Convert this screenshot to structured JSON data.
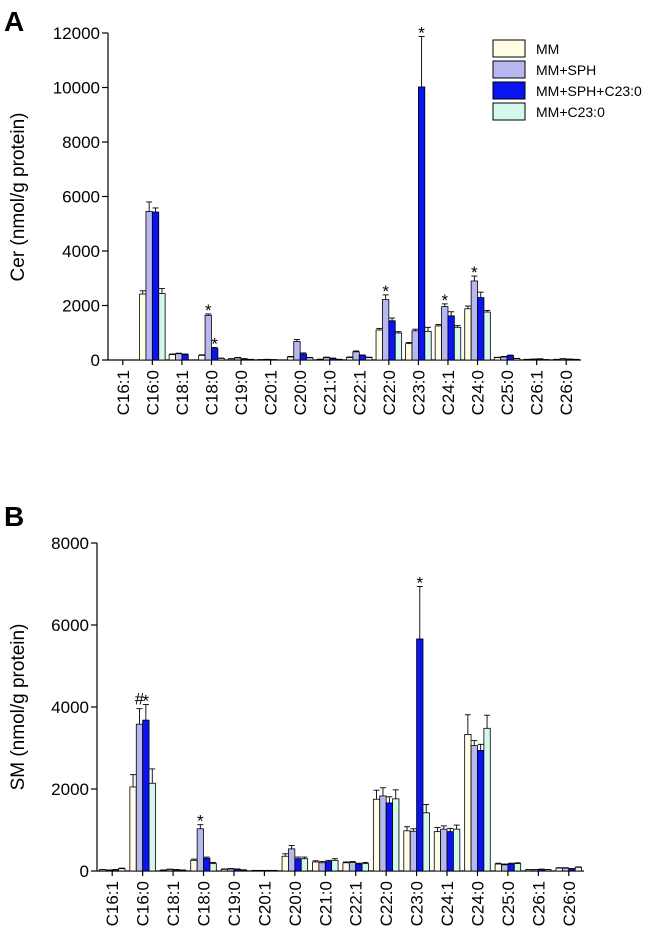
{
  "series_colors": [
    "#fffde6",
    "#b8b8f0",
    "#0a14f0",
    "#d4f8ec"
  ],
  "chart_data": [
    {
      "type": "bar",
      "panel": "A",
      "ylabel": "Cer (nmol/g protein)",
      "ylim": [
        0,
        12000
      ],
      "yticks": [
        0,
        2000,
        4000,
        6000,
        8000,
        10000,
        12000
      ],
      "categories": [
        "C16:1",
        "C16:0",
        "C18:1",
        "C18:0",
        "C19:0",
        "C20:1",
        "C20:0",
        "C21:0",
        "C22:1",
        "C22:0",
        "C23:0",
        "C24:1",
        "C24:0",
        "C25:0",
        "C26:1",
        "C26:0"
      ],
      "legend": {
        "position": "top-right",
        "entries": [
          "MM",
          "MM+SPH",
          "MM+SPH+C23:0",
          "MM+C23:0"
        ]
      },
      "series": [
        {
          "name": "MM",
          "values": [
            0,
            2420,
            200,
            170,
            40,
            10,
            110,
            20,
            90,
            1100,
            600,
            1250,
            1880,
            90,
            20,
            20
          ],
          "errors": [
            0,
            120,
            20,
            20,
            10,
            5,
            20,
            10,
            20,
            60,
            40,
            50,
            100,
            10,
            5,
            5
          ]
        },
        {
          "name": "MM+SPH",
          "values": [
            0,
            5450,
            230,
            1640,
            80,
            20,
            680,
            90,
            300,
            2220,
            1070,
            1960,
            2900,
            110,
            30,
            40
          ],
          "errors": [
            0,
            350,
            20,
            50,
            15,
            5,
            70,
            15,
            30,
            170,
            60,
            100,
            180,
            20,
            5,
            10
          ]
        },
        {
          "name": "MM+SPH+C23:0",
          "values": [
            0,
            5430,
            200,
            420,
            40,
            10,
            220,
            60,
            160,
            1440,
            10020,
            1620,
            2290,
            160,
            40,
            30
          ],
          "errors": [
            0,
            150,
            20,
            40,
            10,
            5,
            40,
            10,
            25,
            100,
            1850,
            150,
            200,
            20,
            5,
            5
          ]
        },
        {
          "name": "MM+C23:0",
          "values": [
            0,
            2440,
            0,
            60,
            20,
            0,
            80,
            20,
            90,
            990,
            1050,
            1200,
            1760,
            50,
            10,
            20
          ],
          "errors": [
            0,
            180,
            0,
            10,
            5,
            0,
            15,
            5,
            15,
            50,
            150,
            60,
            60,
            10,
            5,
            5
          ]
        }
      ],
      "annotations": [
        {
          "text": "*",
          "category": "C18:0",
          "series": 1
        },
        {
          "text": "*",
          "category": "C18:0",
          "series": 2
        },
        {
          "text": "*",
          "category": "C22:0",
          "series": 1
        },
        {
          "text": "*",
          "category": "C23:0",
          "series": 2
        },
        {
          "text": "*",
          "category": "C24:1",
          "series": 1
        },
        {
          "text": "*",
          "category": "C24:0",
          "series": 1
        }
      ]
    },
    {
      "type": "bar",
      "panel": "B",
      "ylabel": "SM (nmol/g protein)",
      "ylim": [
        0,
        8000
      ],
      "yticks": [
        0,
        2000,
        4000,
        6000,
        8000
      ],
      "categories": [
        "C16:1",
        "C16:0",
        "C18:1",
        "C18:0",
        "C19:0",
        "C20:1",
        "C20:0",
        "C21:0",
        "C22:1",
        "C22:0",
        "C23:0",
        "C24:1",
        "C24:0",
        "C25:0",
        "C26:1",
        "C26:0"
      ],
      "series": [
        {
          "name": "MM",
          "values": [
            30,
            2050,
            20,
            260,
            40,
            10,
            360,
            220,
            200,
            1750,
            980,
            960,
            3330,
            170,
            30,
            70
          ],
          "errors": [
            5,
            300,
            5,
            30,
            10,
            5,
            60,
            30,
            20,
            220,
            100,
            100,
            480,
            20,
            5,
            10
          ]
        },
        {
          "name": "MM+SPH",
          "values": [
            20,
            3580,
            40,
            1030,
            50,
            10,
            540,
            200,
            210,
            1830,
            970,
            1020,
            3060,
            150,
            30,
            70
          ],
          "errors": [
            5,
            380,
            5,
            100,
            10,
            5,
            80,
            30,
            20,
            200,
            60,
            80,
            120,
            20,
            5,
            10
          ]
        },
        {
          "name": "MM+SPH+C23:0",
          "values": [
            30,
            3680,
            30,
            310,
            40,
            10,
            300,
            230,
            170,
            1660,
            5660,
            960,
            2940,
            170,
            40,
            50
          ],
          "errors": [
            5,
            380,
            5,
            30,
            10,
            5,
            40,
            30,
            20,
            150,
            1280,
            80,
            150,
            20,
            5,
            10
          ]
        },
        {
          "name": "MM+C23:0",
          "values": [
            60,
            2140,
            20,
            180,
            20,
            10,
            300,
            260,
            180,
            1760,
            1420,
            1020,
            3480,
            180,
            30,
            90
          ],
          "errors": [
            10,
            350,
            5,
            30,
            10,
            5,
            40,
            40,
            30,
            220,
            200,
            100,
            320,
            20,
            5,
            10
          ]
        }
      ],
      "annotations": [
        {
          "text": "#",
          "category": "C16:0",
          "series": 1
        },
        {
          "text": "*",
          "category": "C16:0",
          "series": 2
        },
        {
          "text": "*",
          "category": "C18:0",
          "series": 1
        },
        {
          "text": "*",
          "category": "C23:0",
          "series": 2
        }
      ]
    }
  ]
}
